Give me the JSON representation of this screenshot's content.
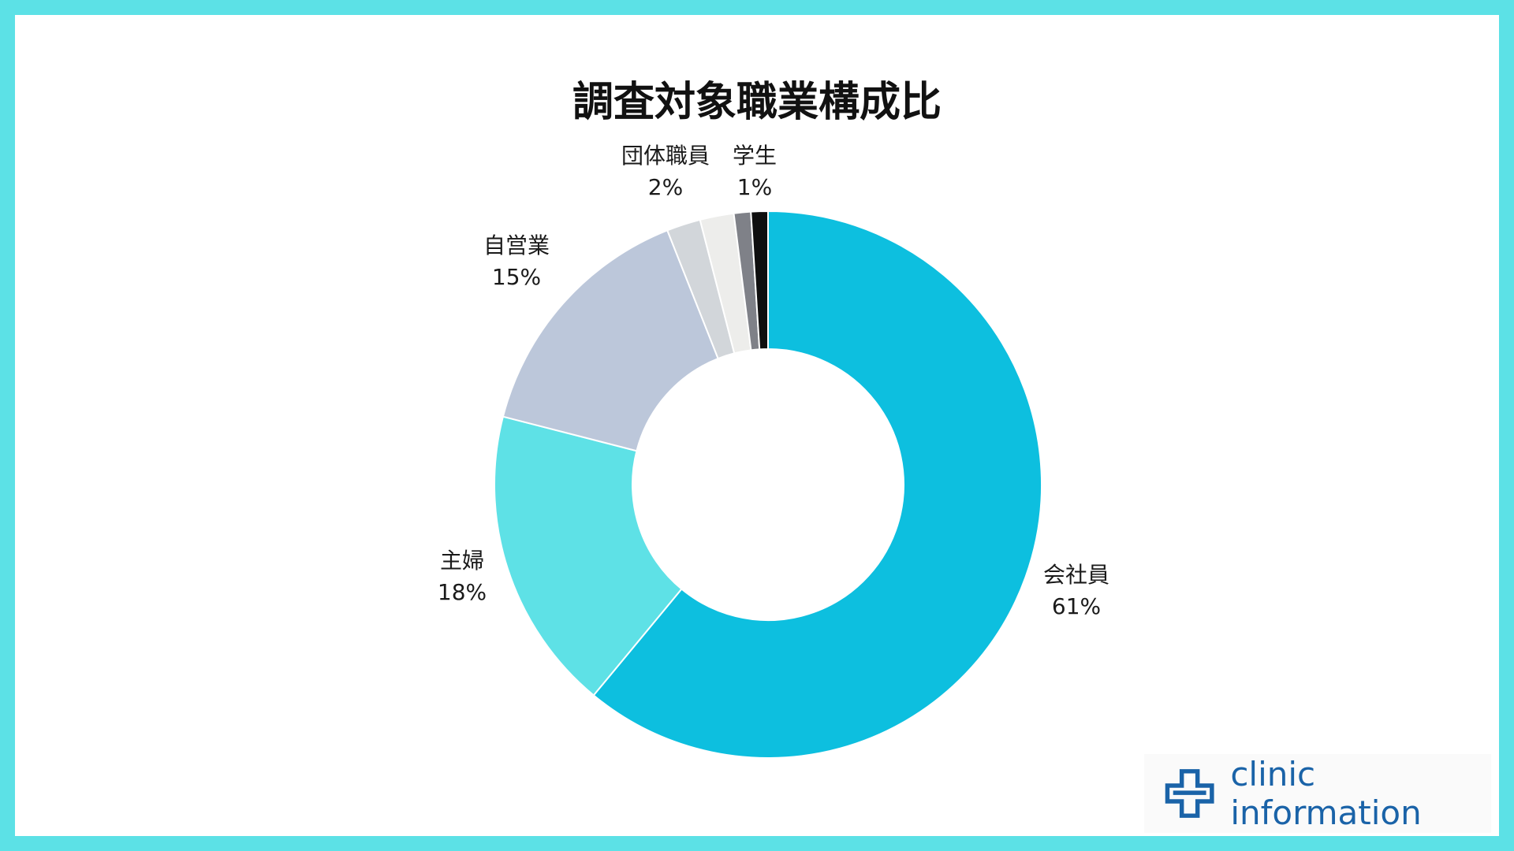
{
  "chart_data": {
    "type": "pie",
    "title": "調査対象職業構成比",
    "donut": true,
    "slices": [
      {
        "label": "会社員",
        "value": 61,
        "percent_label": "61%",
        "color": "#0dbfdf"
      },
      {
        "label": "主婦",
        "value": 18,
        "percent_label": "18%",
        "color": "#5ee1e6"
      },
      {
        "label": "自営業",
        "value": 15,
        "percent_label": "15%",
        "color": "#bcc7da"
      },
      {
        "label": "",
        "value": 2,
        "percent_label": "",
        "color": "#d2d6da"
      },
      {
        "label": "団体職員",
        "value": 2,
        "percent_label": "2%",
        "color": "#ededeb"
      },
      {
        "label": "",
        "value": 1,
        "percent_label": "",
        "color": "#7f8188"
      },
      {
        "label": "学生",
        "value": 1,
        "percent_label": "1%",
        "color": "#0f0f0f"
      }
    ]
  },
  "logo": {
    "text": "clinic information",
    "color": "#1a63a8"
  }
}
